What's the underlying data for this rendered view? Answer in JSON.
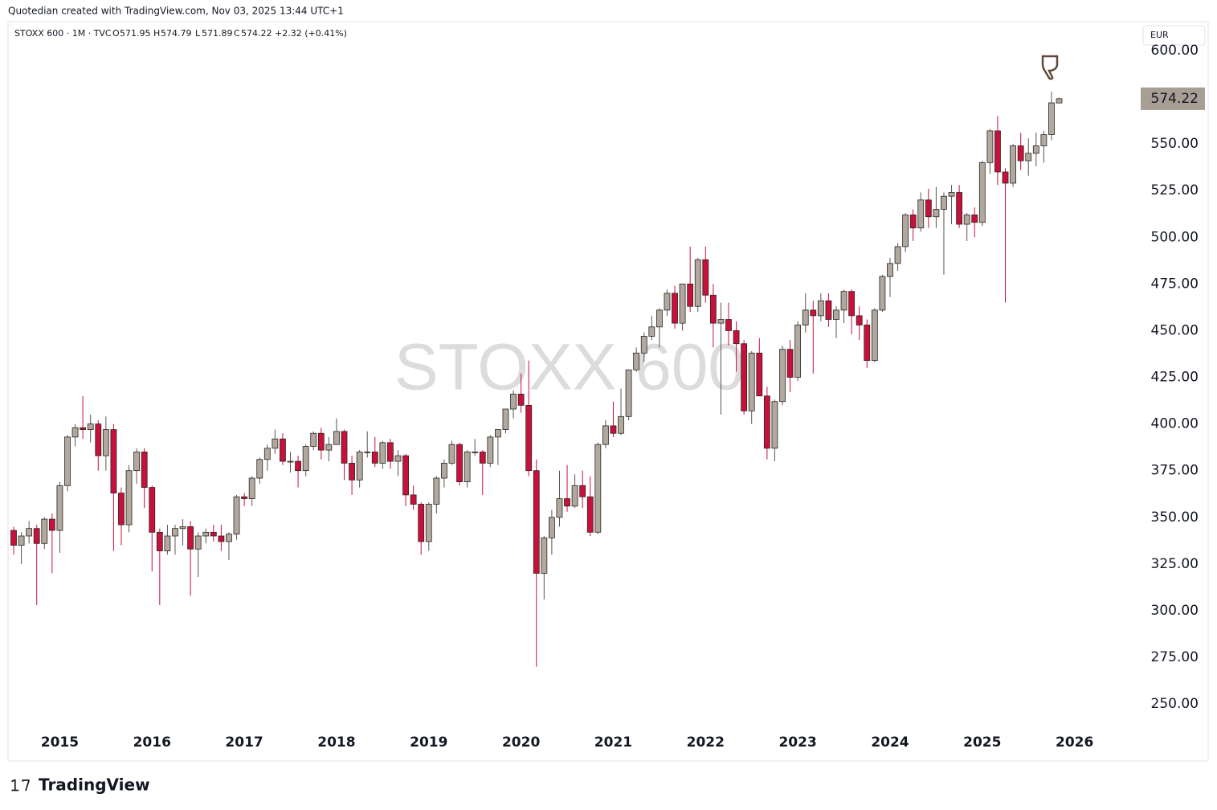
{
  "header": {
    "credit": "Quotedian created with TradingView.com, Nov 03, 2025 13:44 UTC+1",
    "symbol": "STOXX 600 · 1M · TVC",
    "o": "O",
    "h": "H",
    "l": "L",
    "c": "C",
    "change": "+2.32 (+0.41%)",
    "currency": "EUR",
    "watermark": "STOXX 600"
  },
  "footer": {
    "logo": "TradingView"
  },
  "chart_data": {
    "type": "candlestick",
    "x": [
      "2014-07",
      "2014-08",
      "2014-09",
      "2014-10",
      "2014-11",
      "2014-12",
      "2015-01",
      "2015-02",
      "2015-03",
      "2015-04",
      "2015-05",
      "2015-06",
      "2015-07",
      "2015-08",
      "2015-09",
      "2015-10",
      "2015-11",
      "2015-12",
      "2016-01",
      "2016-02",
      "2016-03",
      "2016-04",
      "2016-05",
      "2016-06",
      "2016-07",
      "2016-08",
      "2016-09",
      "2016-10",
      "2016-11",
      "2016-12",
      "2017-01",
      "2017-02",
      "2017-03",
      "2017-04",
      "2017-05",
      "2017-06",
      "2017-07",
      "2017-08",
      "2017-09",
      "2017-10",
      "2017-11",
      "2017-12",
      "2018-01",
      "2018-02",
      "2018-03",
      "2018-04",
      "2018-05",
      "2018-06",
      "2018-07",
      "2018-08",
      "2018-09",
      "2018-10",
      "2018-11",
      "2018-12",
      "2019-01",
      "2019-02",
      "2019-03",
      "2019-04",
      "2019-05",
      "2019-06",
      "2019-07",
      "2019-08",
      "2019-09",
      "2019-10",
      "2019-11",
      "2019-12",
      "2020-01",
      "2020-02",
      "2020-03",
      "2020-04",
      "2020-05",
      "2020-06",
      "2020-07",
      "2020-08",
      "2020-09",
      "2020-10",
      "2020-11",
      "2020-12",
      "2021-01",
      "2021-02",
      "2021-03",
      "2021-04",
      "2021-05",
      "2021-06",
      "2021-07",
      "2021-08",
      "2021-09",
      "2021-10",
      "2021-11",
      "2021-12",
      "2022-01",
      "2022-02",
      "2022-03",
      "2022-04",
      "2022-05",
      "2022-06",
      "2022-07",
      "2022-08",
      "2022-09",
      "2022-10",
      "2022-11",
      "2022-12",
      "2023-01",
      "2023-02",
      "2023-03",
      "2023-04",
      "2023-05",
      "2023-06",
      "2023-07",
      "2023-08",
      "2023-09",
      "2023-10",
      "2023-11",
      "2023-12",
      "2024-01",
      "2024-02",
      "2024-03",
      "2024-04",
      "2024-05",
      "2024-06",
      "2024-07",
      "2024-08",
      "2024-09",
      "2024-10",
      "2024-11",
      "2024-12",
      "2025-01",
      "2025-02",
      "2025-03",
      "2025-04",
      "2025-05",
      "2025-06",
      "2025-07",
      "2025-08",
      "2025-09",
      "2025-10",
      "2025-11"
    ],
    "open": [
      343,
      335,
      340,
      344,
      336,
      349,
      343,
      367,
      393,
      398,
      397,
      400,
      383,
      397,
      363,
      346,
      375,
      385,
      366,
      342,
      332,
      340,
      344,
      345,
      333,
      340,
      342,
      340,
      337,
      341,
      361,
      360,
      371,
      381,
      387,
      392,
      380,
      380,
      375,
      388,
      395,
      386,
      389,
      396,
      379,
      370,
      385,
      385,
      379,
      390,
      380,
      383,
      362,
      357,
      337,
      357,
      371,
      379,
      389,
      369,
      385,
      385,
      379,
      393,
      397,
      408,
      416,
      410,
      375,
      320,
      339,
      350,
      360,
      356,
      367,
      361,
      342,
      389,
      399,
      395,
      404,
      429,
      438,
      447,
      452,
      461,
      470,
      454,
      475,
      463,
      488,
      469,
      454,
      456,
      450,
      443,
      407,
      438,
      415,
      387,
      412,
      440,
      425,
      453,
      461,
      458,
      466,
      456,
      461,
      471,
      458,
      453,
      434,
      461,
      479,
      486,
      495,
      512,
      505,
      520,
      511,
      515,
      522,
      524,
      507,
      512,
      508,
      540,
      557,
      535,
      529,
      549,
      541,
      545,
      549,
      555,
      571.95
    ],
    "high": [
      345,
      342,
      348,
      346,
      350,
      352,
      369,
      394,
      400,
      415,
      405,
      402,
      404,
      400,
      366,
      378,
      387,
      387,
      367,
      344,
      346,
      346,
      349,
      348,
      342,
      344,
      346,
      346,
      342,
      362,
      363,
      372,
      382,
      389,
      397,
      395,
      385,
      383,
      389,
      396,
      398,
      393,
      403,
      397,
      383,
      386,
      396,
      393,
      391,
      392,
      386,
      384,
      367,
      358,
      358,
      372,
      381,
      391,
      390,
      386,
      392,
      386,
      394,
      397,
      408,
      418,
      427,
      434,
      381,
      340,
      354,
      375,
      378,
      373,
      375,
      372,
      390,
      402,
      412,
      419,
      429,
      441,
      449,
      458,
      462,
      472,
      474,
      475,
      495,
      489,
      495,
      475,
      465,
      465,
      455,
      445,
      439,
      446,
      420,
      413,
      442,
      445,
      455,
      470,
      466,
      470,
      470,
      463,
      472,
      472,
      463,
      456,
      462,
      480,
      489,
      497,
      513,
      515,
      524,
      526,
      527,
      524,
      528,
      528,
      513,
      516,
      541,
      558,
      565,
      537,
      550,
      556,
      553,
      556,
      557,
      578,
      574.79
    ],
    "low": [
      330,
      325,
      336,
      303,
      333,
      320,
      331,
      364,
      388,
      392,
      390,
      375,
      375,
      332,
      335,
      342,
      368,
      355,
      321,
      303,
      330,
      330,
      335,
      308,
      318,
      336,
      337,
      332,
      327,
      338,
      356,
      356,
      368,
      375,
      384,
      378,
      374,
      366,
      372,
      386,
      381,
      380,
      389,
      370,
      362,
      366,
      382,
      377,
      376,
      376,
      372,
      356,
      354,
      330,
      332,
      352,
      366,
      378,
      367,
      366,
      383,
      362,
      377,
      378,
      395,
      403,
      406,
      372,
      270,
      306,
      330,
      345,
      353,
      355,
      355,
      340,
      341,
      387,
      393,
      394,
      402,
      428,
      433,
      445,
      441,
      458,
      451,
      450,
      460,
      460,
      465,
      441,
      405,
      442,
      428,
      405,
      400,
      415,
      381,
      380,
      410,
      417,
      423,
      449,
      427,
      455,
      452,
      446,
      454,
      448,
      445,
      430,
      433,
      460,
      468,
      482,
      492,
      498,
      503,
      505,
      505,
      480,
      507,
      505,
      498,
      500,
      506,
      534,
      528,
      465,
      527,
      536,
      533,
      538,
      540,
      552,
      571.89
    ],
    "close": [
      335,
      340,
      344,
      336,
      349,
      343,
      367,
      393,
      398,
      397,
      400,
      383,
      397,
      363,
      346,
      375,
      385,
      366,
      342,
      332,
      340,
      344,
      345,
      333,
      340,
      342,
      340,
      337,
      341,
      361,
      360,
      371,
      381,
      387,
      392,
      380,
      380,
      375,
      388,
      395,
      386,
      389,
      396,
      379,
      370,
      385,
      385,
      379,
      390,
      380,
      383,
      362,
      357,
      337,
      357,
      371,
      379,
      389,
      369,
      385,
      385,
      379,
      393,
      397,
      408,
      416,
      410,
      375,
      320,
      339,
      350,
      360,
      356,
      367,
      361,
      342,
      389,
      399,
      395,
      404,
      429,
      438,
      447,
      452,
      461,
      470,
      454,
      475,
      463,
      488,
      469,
      454,
      456,
      450,
      443,
      407,
      438,
      415,
      387,
      412,
      440,
      425,
      453,
      461,
      458,
      466,
      456,
      461,
      471,
      458,
      453,
      434,
      461,
      479,
      486,
      495,
      512,
      505,
      520,
      511,
      515,
      522,
      524,
      507,
      512,
      508,
      540,
      557,
      535,
      529,
      549,
      541,
      545,
      549,
      555,
      572,
      574.22
    ],
    "up_color": "#b2a99e",
    "down_color": "#c8103c",
    "last_color": "#a89f94",
    "ylim": [
      239.7,
      614.2
    ],
    "yticks": [
      {
        "value": 250,
        "label": "250.00"
      },
      {
        "value": 275,
        "label": "275.00"
      },
      {
        "value": 300,
        "label": "300.00"
      },
      {
        "value": 325,
        "label": "325.00"
      },
      {
        "value": 350,
        "label": "350.00"
      },
      {
        "value": 375,
        "label": "375.00"
      },
      {
        "value": 400,
        "label": "400.00"
      },
      {
        "value": 425,
        "label": "425.00"
      },
      {
        "value": 450,
        "label": "450.00"
      },
      {
        "value": 475,
        "label": "475.00"
      },
      {
        "value": 500,
        "label": "500.00"
      },
      {
        "value": 525,
        "label": "525.00"
      },
      {
        "value": 550,
        "label": "550.00"
      },
      {
        "value": 575,
        "label": "575.00"
      },
      {
        "value": 600,
        "label": "600.00"
      }
    ],
    "xticks": [
      {
        "value": "2015-01",
        "label": "2015"
      },
      {
        "value": "2016-01",
        "label": "2016"
      },
      {
        "value": "2017-01",
        "label": "2017"
      },
      {
        "value": "2018-01",
        "label": "2018"
      },
      {
        "value": "2019-01",
        "label": "2019"
      },
      {
        "value": "2020-01",
        "label": "2020"
      },
      {
        "value": "2021-01",
        "label": "2021"
      },
      {
        "value": "2022-01",
        "label": "2022"
      },
      {
        "value": "2023-01",
        "label": "2023"
      },
      {
        "value": "2024-01",
        "label": "2024"
      },
      {
        "value": "2025-01",
        "label": "2025"
      },
      {
        "value": "2026-01",
        "label": "2026"
      }
    ],
    "grid": false
  }
}
